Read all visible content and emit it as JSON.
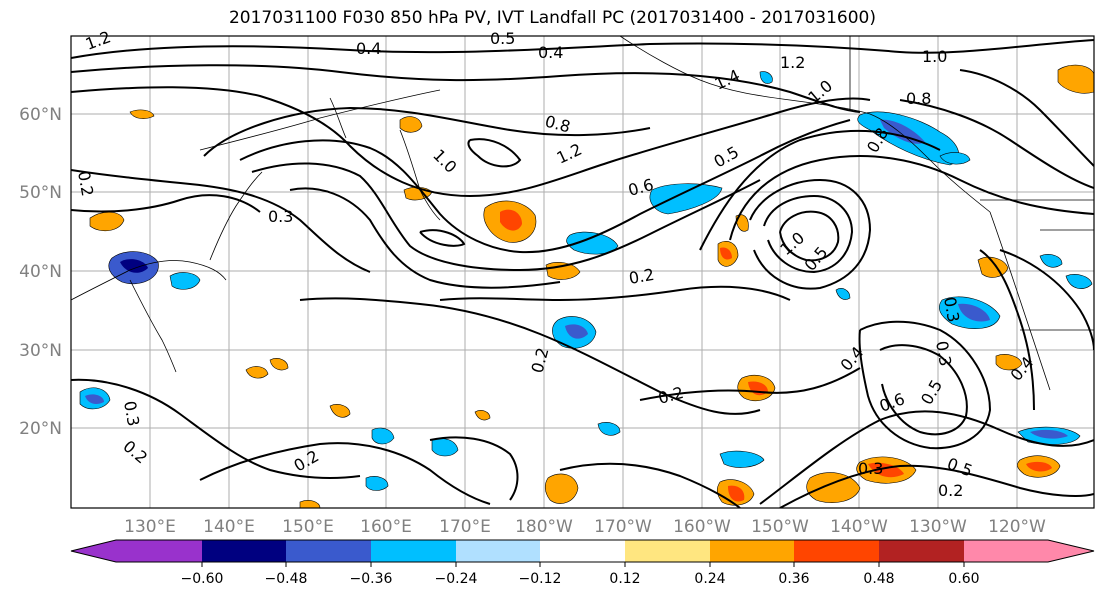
{
  "title": "2017031100 F030 850 hPa PV, IVT Landfall PC (2017031400 - 2017031600)",
  "map": {
    "lat_labels": [
      "60°N",
      "50°N",
      "40°N",
      "30°N",
      "20°N"
    ],
    "lon_labels": [
      "130°E",
      "140°E",
      "150°E",
      "160°E",
      "170°E",
      "180°W",
      "170°W",
      "160°W",
      "150°W",
      "140°W",
      "130°W",
      "120°W"
    ],
    "contour_labels": [
      "1.2",
      "0.4",
      "0.5",
      "0.4",
      "1.4",
      "1.2",
      "1.0",
      "1.0",
      "0.8",
      "1.0",
      "0.8",
      "1.2",
      "0.6",
      "0.5",
      "0.8",
      "0.3",
      "1.0",
      "0.5",
      "0.2",
      "0.2",
      "0.3",
      "0.4",
      "0.6",
      "0.5",
      "0.3",
      "0.2",
      "0.4",
      "0.3",
      "0.5",
      "0.2",
      "0.2",
      "0.3",
      "0.2",
      "0.2"
    ]
  },
  "colorbar": {
    "ticks": [
      "−0.60",
      "−0.48",
      "−0.36",
      "−0.24",
      "−0.12",
      "0.12",
      "0.24",
      "0.36",
      "0.48",
      "0.60"
    ],
    "colors": [
      "#9932cc",
      "#000080",
      "#3a5acd",
      "#00bfff",
      "#b0e0ff",
      "#ffffff",
      "#ffe680",
      "#ffa500",
      "#ff4500",
      "#b22222",
      "#ff88aa"
    ]
  }
}
